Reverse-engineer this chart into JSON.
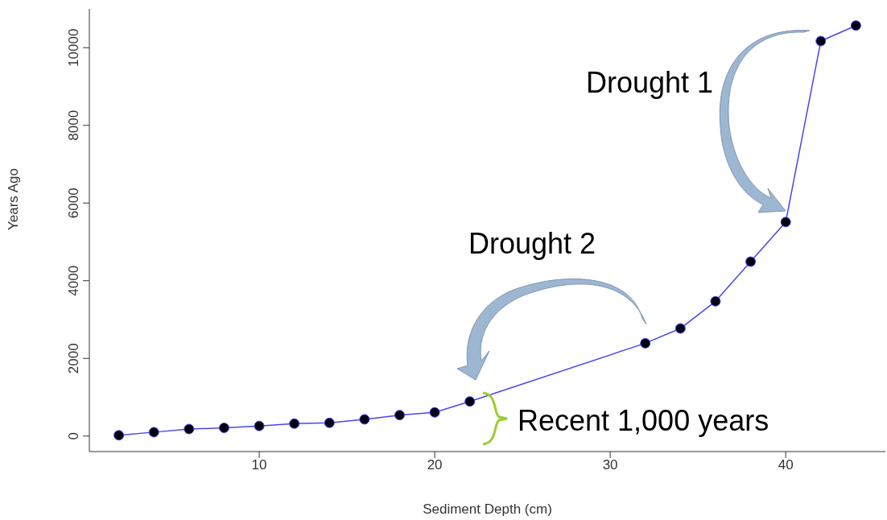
{
  "chart_data": {
    "type": "line",
    "xlabel": "Sediment Depth (cm)",
    "ylabel": "Years Ago",
    "x": [
      2,
      4,
      6,
      8,
      10,
      12,
      14,
      16,
      18,
      20,
      22,
      32,
      34,
      36,
      38,
      40,
      42,
      44
    ],
    "series": [
      {
        "color": "#4545f0",
        "values": [
          20,
          100,
          180,
          210,
          260,
          320,
          340,
          430,
          540,
          610,
          890,
          2390,
          2770,
          3470,
          4490,
          5510,
          10170,
          10570
        ]
      }
    ],
    "xlim": [
      0.32,
      45.68
    ],
    "xticks": [
      10,
      20,
      30,
      40
    ],
    "ylim": [
      -400,
      11000
    ],
    "yticks": [
      0,
      2000,
      4000,
      6000,
      8000,
      10000
    ],
    "marker": "circle",
    "line_style": "solid",
    "grid": false,
    "legend": false,
    "annotations": [
      "Drought 1",
      "Drought 2",
      "Recent 1,000 years"
    ]
  }
}
